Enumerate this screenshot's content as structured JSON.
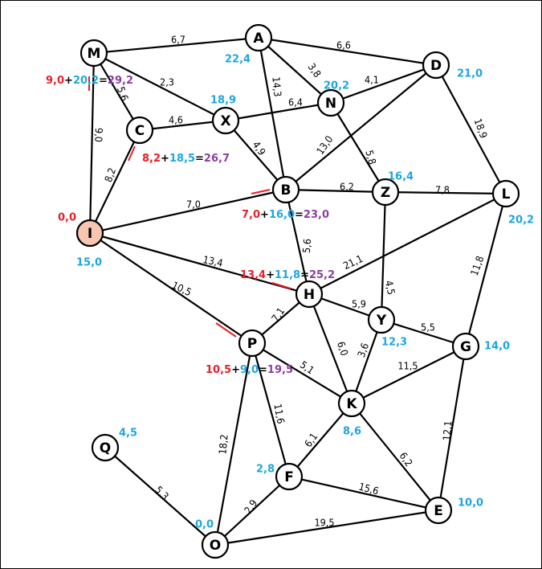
{
  "colors": {
    "red": "#e8202a",
    "blue": "#1ea6e0",
    "purple": "#8b3fa0",
    "start_fill": "#f7c6b0"
  },
  "nodes": [
    {
      "id": "M",
      "label": "M"
    },
    {
      "id": "A",
      "label": "A"
    },
    {
      "id": "D",
      "label": "D"
    },
    {
      "id": "N",
      "label": "N"
    },
    {
      "id": "X",
      "label": "X"
    },
    {
      "id": "C",
      "label": "C"
    },
    {
      "id": "B",
      "label": "B"
    },
    {
      "id": "Z",
      "label": "Z"
    },
    {
      "id": "L",
      "label": "L"
    },
    {
      "id": "I",
      "label": "I"
    },
    {
      "id": "H",
      "label": "H"
    },
    {
      "id": "Y",
      "label": "Y"
    },
    {
      "id": "G",
      "label": "G"
    },
    {
      "id": "P",
      "label": "P"
    },
    {
      "id": "K",
      "label": "K"
    },
    {
      "id": "Q",
      "label": "Q"
    },
    {
      "id": "F",
      "label": "F"
    },
    {
      "id": "E",
      "label": "E"
    },
    {
      "id": "O",
      "label": "O"
    }
  ],
  "edges": [
    {
      "from": "M",
      "to": "A",
      "weight": "6,7"
    },
    {
      "from": "A",
      "to": "D",
      "weight": "6,6"
    },
    {
      "from": "M",
      "to": "X",
      "weight": "2,3"
    },
    {
      "from": "M",
      "to": "C",
      "weight": "5,6"
    },
    {
      "from": "M",
      "to": "I",
      "weight": "9,0"
    },
    {
      "from": "A",
      "to": "N",
      "weight": "3,8"
    },
    {
      "from": "A",
      "to": "B",
      "weight": "14,3"
    },
    {
      "from": "N",
      "to": "D",
      "weight": "4,1"
    },
    {
      "from": "X",
      "to": "N",
      "weight": "6,4"
    },
    {
      "from": "C",
      "to": "X",
      "weight": "4,6"
    },
    {
      "from": "X",
      "to": "B",
      "weight": "4,9"
    },
    {
      "from": "D",
      "to": "B",
      "weight": "13,0"
    },
    {
      "from": "N",
      "to": "Z",
      "weight": "5,8"
    },
    {
      "from": "D",
      "to": "L",
      "weight": "18,9"
    },
    {
      "from": "C",
      "to": "I",
      "weight": "8,2"
    },
    {
      "from": "B",
      "to": "Z",
      "weight": "6,2"
    },
    {
      "from": "Z",
      "to": "L",
      "weight": "7,8"
    },
    {
      "from": "I",
      "to": "B",
      "weight": "7,0"
    },
    {
      "from": "B",
      "to": "H",
      "weight": "5,6"
    },
    {
      "from": "I",
      "to": "H",
      "weight": "13,4"
    },
    {
      "from": "H",
      "to": "L",
      "weight": "21,1"
    },
    {
      "from": "L",
      "to": "G",
      "weight": "11,8"
    },
    {
      "from": "Z",
      "to": "Y",
      "weight": "4,5"
    },
    {
      "from": "I",
      "to": "P",
      "weight": "10,5"
    },
    {
      "from": "P",
      "to": "H",
      "weight": "7,1"
    },
    {
      "from": "H",
      "to": "Y",
      "weight": "5,9"
    },
    {
      "from": "Y",
      "to": "G",
      "weight": "5,5"
    },
    {
      "from": "H",
      "to": "K",
      "weight": "6,0"
    },
    {
      "from": "Y",
      "to": "K",
      "weight": "3,6"
    },
    {
      "from": "P",
      "to": "K",
      "weight": "5,1"
    },
    {
      "from": "K",
      "to": "G",
      "weight": "11,5"
    },
    {
      "from": "P",
      "to": "F",
      "weight": "11,6"
    },
    {
      "from": "P",
      "to": "O",
      "weight": "18,2"
    },
    {
      "from": "K",
      "to": "F",
      "weight": "6,1"
    },
    {
      "from": "K",
      "to": "E",
      "weight": "6,2"
    },
    {
      "from": "G",
      "to": "E",
      "weight": "12,1"
    },
    {
      "from": "Q",
      "to": "O",
      "weight": "5,3"
    },
    {
      "from": "F",
      "to": "E",
      "weight": "15,6"
    },
    {
      "from": "O",
      "to": "F",
      "weight": "2,9"
    },
    {
      "from": "O",
      "to": "E",
      "weight": "19,5"
    }
  ],
  "distances": [
    {
      "node": "A",
      "value": "22,4"
    },
    {
      "node": "D",
      "value": "21,0"
    },
    {
      "node": "N",
      "value": "20,2"
    },
    {
      "node": "X",
      "value": "18,9"
    },
    {
      "node": "Z",
      "value": "16,4"
    },
    {
      "node": "L",
      "value": "20,2"
    },
    {
      "node": "I",
      "value": "15,0"
    },
    {
      "node": "Y",
      "value": "12,3"
    },
    {
      "node": "G",
      "value": "14,0"
    },
    {
      "node": "K",
      "value": "8,6"
    },
    {
      "node": "Q",
      "value": "4,5"
    },
    {
      "node": "F",
      "value": "2,8"
    },
    {
      "node": "E",
      "value": "10,0"
    },
    {
      "node": "O",
      "value": "0,0"
    }
  ],
  "start_value": "0,0",
  "calculations": [
    {
      "node": "M",
      "a": "9,0",
      "b": "20,2",
      "sum": "29,2"
    },
    {
      "node": "C",
      "a": "8,2",
      "b": "18,5",
      "sum": "26,7"
    },
    {
      "node": "B",
      "a": "7,0",
      "b": "16,0",
      "sum": "23,0"
    },
    {
      "node": "H",
      "a": "13,4",
      "b": "11,8",
      "sum": "25,2"
    },
    {
      "node": "P",
      "a": "10,5",
      "b": "9,0",
      "sum": "19,5"
    }
  ],
  "operators": {
    "plus": "+",
    "equals": "="
  }
}
